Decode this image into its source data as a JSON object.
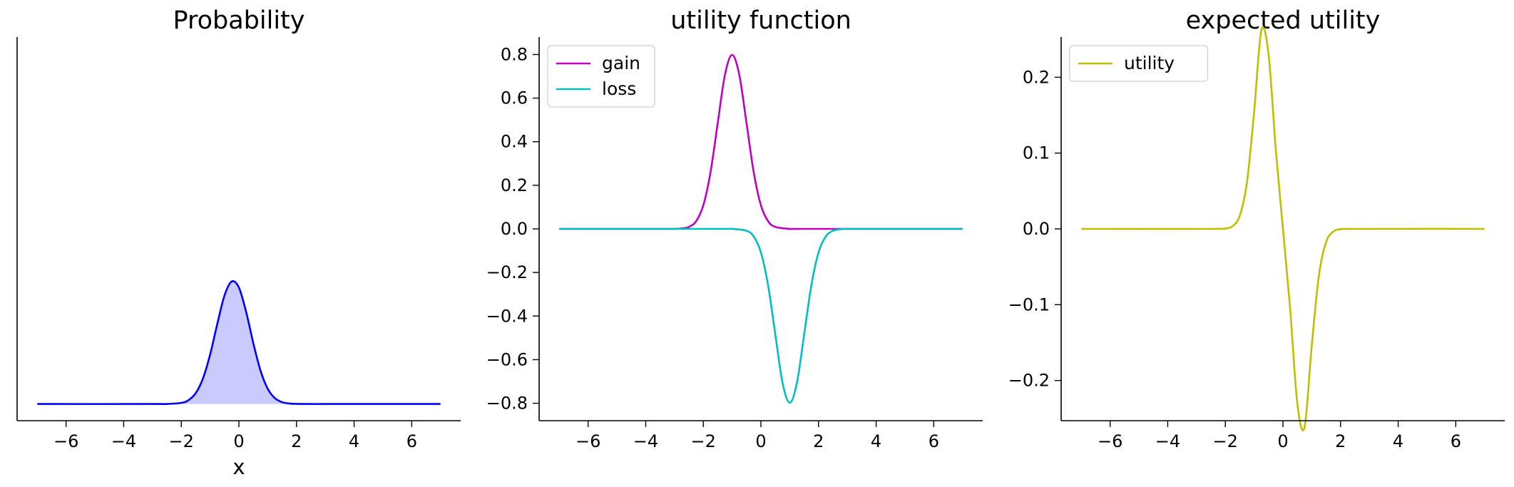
{
  "chart_data": [
    {
      "type": "area",
      "title": "Probability",
      "xlabel": "x",
      "ylabel": "",
      "xlim": [
        -7.7,
        7.7
      ],
      "ylim": [
        -0.04,
        0.88
      ],
      "xticks": [
        -6,
        -4,
        -2,
        0,
        2,
        4,
        6
      ],
      "yticks": [],
      "grid": false,
      "series": [
        {
          "color": "#0000ff",
          "fill": "#cacaff",
          "x": [
            -7,
            -3,
            -2.5,
            -2,
            -1.75,
            -1.5,
            -1.25,
            -1,
            -0.75,
            -0.5,
            -0.25,
            0,
            0.25,
            0.5,
            0.75,
            1,
            1.25,
            1.5,
            1.75,
            2,
            2.5,
            3,
            7
          ],
          "y": [
            0,
            0,
            0.0001,
            0.0027,
            0.0093,
            0.026,
            0.0609,
            0.1184,
            0.1923,
            0.2603,
            0.2939,
            0.2792,
            0.2213,
            0.1461,
            0.0801,
            0.0366,
            0.0139,
            0.0044,
            0.0012,
            0.0003,
            0,
            0,
            0
          ]
        }
      ]
    },
    {
      "type": "line",
      "title": "utility function",
      "xlabel": "",
      "ylabel": "",
      "xlim": [
        -7.7,
        7.7
      ],
      "ylim": [
        -0.88,
        0.88
      ],
      "xticks": [
        -6,
        -4,
        -2,
        0,
        2,
        4,
        6
      ],
      "yticks": [
        -0.8,
        -0.6,
        -0.4,
        -0.2,
        0.0,
        0.2,
        0.4,
        0.6,
        0.8
      ],
      "ytick_labels": [
        "−0.8",
        "−0.6",
        "−0.4",
        "−0.2",
        "0.0",
        "0.2",
        "0.4",
        "0.6",
        "0.8"
      ],
      "grid": false,
      "legend": "top-left",
      "series": [
        {
          "name": "gain",
          "color": "#bf00bf",
          "x": [
            -7,
            -3.5,
            -3,
            -2.75,
            -2.5,
            -2.25,
            -2,
            -1.75,
            -1.5,
            -1.25,
            -1,
            -0.75,
            -0.5,
            -0.25,
            0,
            0.25,
            0.5,
            1,
            1.5,
            7
          ],
          "y": [
            0,
            0,
            0.0003,
            0.0018,
            0.0089,
            0.0351,
            0.108,
            0.2596,
            0.4852,
            0.7059,
            0.7979,
            0.7059,
            0.4852,
            0.2596,
            0.108,
            0.0351,
            0.0089,
            0.0003,
            0,
            0
          ]
        },
        {
          "name": "loss",
          "color": "#00bfbf",
          "x": [
            -7,
            -1.5,
            -1,
            -0.5,
            -0.25,
            0,
            0.25,
            0.5,
            0.75,
            1,
            1.25,
            1.5,
            1.75,
            2,
            2.25,
            2.5,
            2.75,
            3,
            3.5,
            7
          ],
          "y": [
            0,
            0,
            -0.0003,
            -0.0089,
            -0.0351,
            -0.108,
            -0.2596,
            -0.4852,
            -0.7059,
            -0.7979,
            -0.7059,
            -0.4852,
            -0.2596,
            -0.108,
            -0.0351,
            -0.0089,
            -0.0018,
            -0.0003,
            0,
            0
          ]
        }
      ]
    },
    {
      "type": "line",
      "title": "expected utility",
      "xlabel": "",
      "ylabel": "",
      "xlim": [
        -7.7,
        7.7
      ],
      "ylim": [
        -0.253,
        0.253
      ],
      "xticks": [
        -6,
        -4,
        -2,
        0,
        2,
        4,
        6
      ],
      "yticks": [
        -0.2,
        -0.1,
        0.0,
        0.1,
        0.2
      ],
      "ytick_labels": [
        "−0.2",
        "−0.1",
        "0.0",
        "0.1",
        "0.2"
      ],
      "grid": false,
      "legend": "top-left",
      "series": [
        {
          "name": "utility",
          "color": "#bfbf00",
          "x": [
            -7,
            -2.5,
            -2,
            -1.75,
            -1.5,
            -1.25,
            -1,
            -0.75,
            -0.5,
            -0.25,
            0,
            0.25,
            0.5,
            0.75,
            1,
            1.25,
            1.5,
            1.75,
            2,
            2.5,
            7
          ],
          "y": [
            0,
            0,
            0.0006,
            0.0036,
            0.0172,
            0.0612,
            0.1542,
            0.2617,
            0.2305,
            0.1055,
            0,
            -0.1055,
            -0.2305,
            -0.2617,
            -0.1542,
            -0.0612,
            -0.0172,
            -0.0036,
            -0.0006,
            0,
            0
          ]
        }
      ]
    }
  ]
}
